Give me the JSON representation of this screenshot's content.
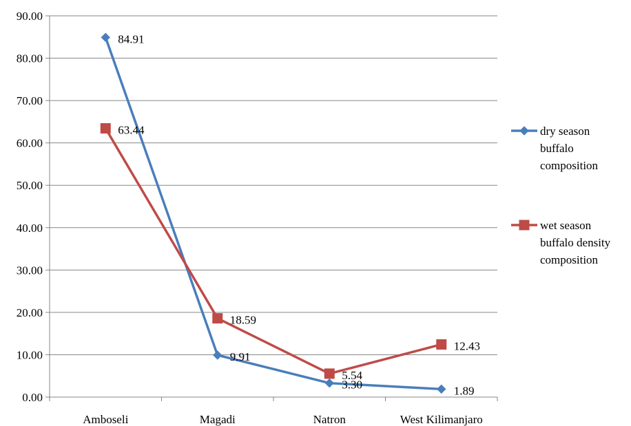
{
  "chart_data": {
    "type": "line",
    "categories": [
      "Amboseli",
      "Magadi",
      "Natron",
      "West Kilimanjaro"
    ],
    "ylim": [
      0,
      90
    ],
    "yticks": [
      "0.00",
      "10.00",
      "20.00",
      "30.00",
      "40.00",
      "50.00",
      "60.00",
      "70.00",
      "80.00",
      "90.00"
    ],
    "grid": true,
    "legend_position": "right",
    "series": [
      {
        "name": "dry season buffalo composition",
        "legend_lines": [
          "dry season",
          "buffalo",
          "composition"
        ],
        "values": [
          84.91,
          9.91,
          3.3,
          1.89
        ],
        "labels": [
          "84.91",
          "9.91",
          "3.30",
          "1.89"
        ],
        "color": "#4a7ebb",
        "marker": "diamond"
      },
      {
        "name": "wet season buffalo density composition",
        "legend_lines": [
          "wet season",
          "buffalo density",
          "composition"
        ],
        "values": [
          63.44,
          18.59,
          5.54,
          12.43
        ],
        "labels": [
          "63.44",
          "18.59",
          "5.54",
          "12.43"
        ],
        "color": "#be4b48",
        "marker": "square"
      }
    ]
  }
}
